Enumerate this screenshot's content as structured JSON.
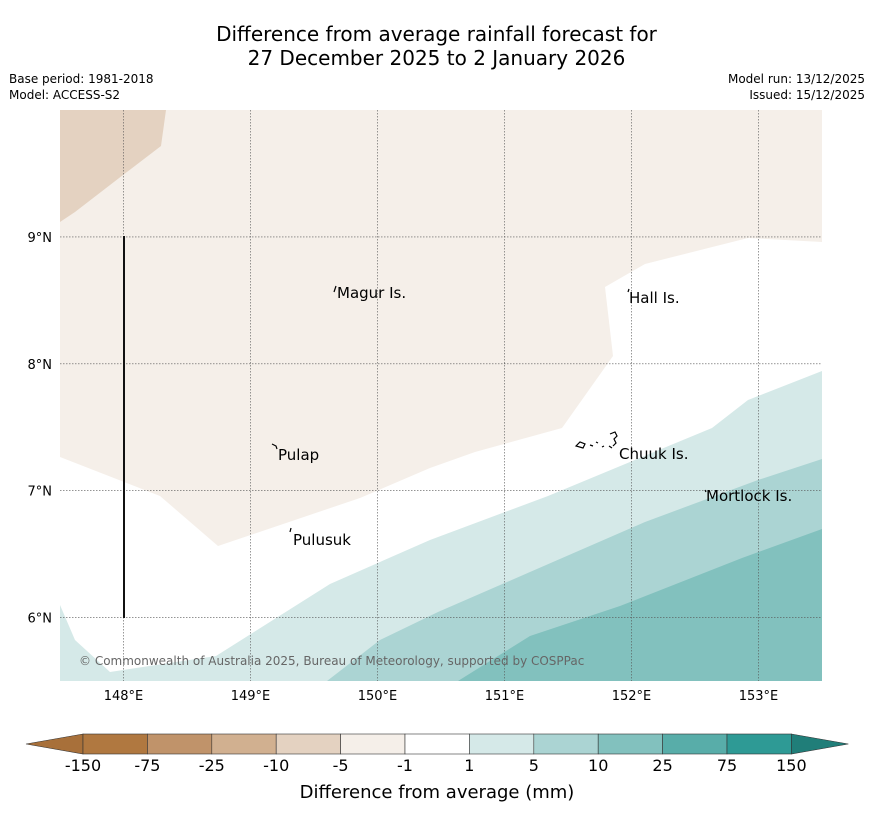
{
  "title_line1": "Difference from average rainfall forecast for",
  "title_line2": "27 December 2025 to 2 January 2026",
  "base_period": "Base period: 1981-2018",
  "model": "Model: ACCESS-S2",
  "model_run": "Model run: 13/12/2025",
  "issued": "Issued: 15/12/2025",
  "copyright": "© Commonwealth of Australia 2025, Bureau of Meteorology, supported by COSPPac",
  "axes": {
    "lon_range": [
      147.5,
      153.5
    ],
    "lat_range": [
      5.5,
      10.0
    ],
    "lon_ticks": [
      "148°E",
      "149°E",
      "150°E",
      "151°E",
      "152°E",
      "153°E"
    ],
    "lat_ticks": [
      "9°N",
      "8°N",
      "7°N",
      "6°N"
    ]
  },
  "places": [
    {
      "name": "Magur Is.",
      "lon": 149.68,
      "lat": 8.55
    },
    {
      "name": "Hall Is.",
      "lon": 151.97,
      "lat": 8.52
    },
    {
      "name": "Pulap",
      "lon": 149.2,
      "lat": 7.32
    },
    {
      "name": "Chuuk Is.",
      "lon": 151.85,
      "lat": 7.33
    },
    {
      "name": "Mortlock Is.",
      "lon": 152.6,
      "lat": 6.97
    },
    {
      "name": "Pulusuk",
      "lon": 149.3,
      "lat": 6.64
    }
  ],
  "colorbar": {
    "title": "Difference from average (mm)",
    "labels": [
      "-150",
      "-75",
      "-25",
      "-10",
      "-5",
      "-1",
      "1",
      "5",
      "10",
      "25",
      "75",
      "150"
    ],
    "colors": [
      "#a8703a",
      "#b07840",
      "#c0936a",
      "#d1b090",
      "#e4d2c1",
      "#f5efe9",
      "#ffffff",
      "#d5e9e8",
      "#abd4d3",
      "#82c1be",
      "#58ada9",
      "#2e9a95",
      "#207e79"
    ]
  },
  "legend_colors": {
    "deep_brown": "#e4d2c1",
    "light_brown": "#f5efe9",
    "neutral": "#ffffff",
    "teal1": "#d5e9e8",
    "teal2": "#abd4d3",
    "teal3": "#82c1be"
  }
}
